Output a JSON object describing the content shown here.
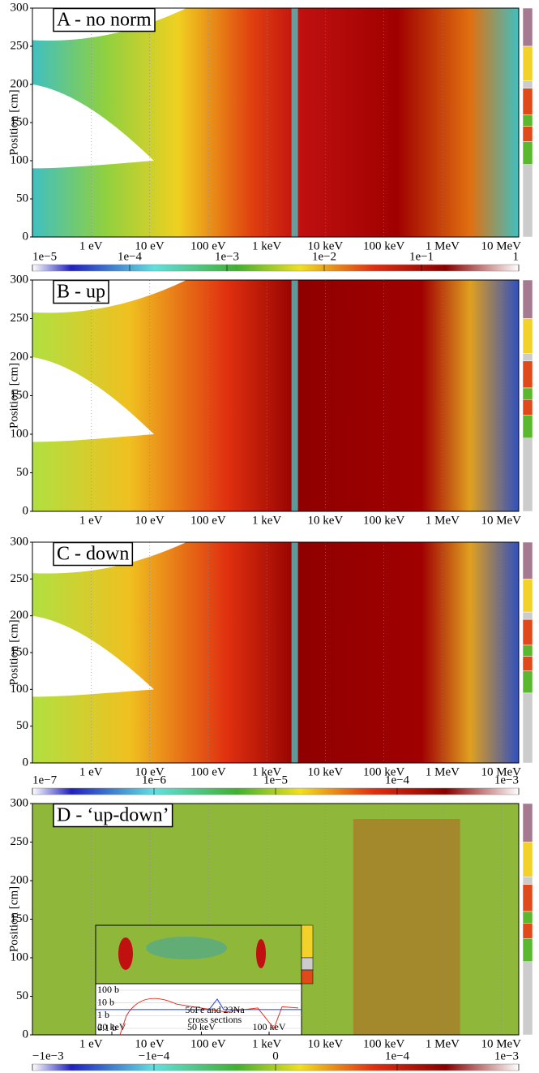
{
  "chart_data": [
    {
      "type": "heatmap",
      "title": "A - no norm",
      "ylabel": "Position [cm]",
      "log_x": true,
      "xlim": [
        0.1,
        20000000
      ],
      "ylim": [
        0,
        300
      ],
      "yticks": [
        0,
        50,
        100,
        150,
        200,
        250,
        300
      ],
      "xticks": [
        {
          "value": 1,
          "label": "1 eV"
        },
        {
          "value": 10,
          "label": "10 eV"
        },
        {
          "value": 100,
          "label": "100 eV"
        },
        {
          "value": 1000,
          "label": "1 keV"
        },
        {
          "value": 10000,
          "label": "10 keV"
        },
        {
          "value": 100000,
          "label": "100 keV"
        },
        {
          "value": 1000000,
          "label": "1 MeV"
        },
        {
          "value": 10000000,
          "label": "10 MeV"
        }
      ],
      "colorbar": {
        "ticks": [
          {
            "value": 1e-05,
            "label": "1e−5"
          },
          {
            "value": 0.0001,
            "label": "1e−4"
          },
          {
            "value": 0.001,
            "label": "1e−3"
          },
          {
            "value": 0.01,
            "label": "1e−2"
          },
          {
            "value": 0.1,
            "label": "1e−1"
          },
          1
        ]
      }
    },
    {
      "type": "heatmap",
      "title": "B - up",
      "ylabel": "Position [cm]",
      "log_x": true,
      "xlim": [
        0.1,
        20000000
      ],
      "ylim": [
        0,
        300
      ],
      "yticks": [
        0,
        50,
        100,
        150,
        200,
        250,
        300
      ],
      "xticks": [
        {
          "value": 1,
          "label": "1 eV"
        },
        {
          "value": 10,
          "label": "10 eV"
        },
        {
          "value": 100,
          "label": "100 eV"
        },
        {
          "value": 1000,
          "label": "1 keV"
        },
        {
          "value": 10000,
          "label": "10 keV"
        },
        {
          "value": 100000,
          "label": "100 keV"
        },
        {
          "value": 1000000,
          "label": "1 MeV"
        },
        {
          "value": 10000000,
          "label": "10 MeV"
        }
      ]
    },
    {
      "type": "heatmap",
      "title": "C - down",
      "ylabel": "Position [cm]",
      "log_x": true,
      "xlim": [
        0.1,
        20000000
      ],
      "ylim": [
        0,
        300
      ],
      "yticks": [
        0,
        50,
        100,
        150,
        200,
        250,
        300
      ],
      "xticks": [
        {
          "value": 1,
          "label": "1 eV"
        },
        {
          "value": 10,
          "label": "10 eV"
        },
        {
          "value": 100,
          "label": "100 eV"
        },
        {
          "value": 1000,
          "label": "1 keV"
        },
        {
          "value": 10000,
          "label": "10 keV"
        },
        {
          "value": 100000,
          "label": "100 keV"
        },
        {
          "value": 1000000,
          "label": "1 MeV"
        },
        {
          "value": 10000000,
          "label": "10 MeV"
        }
      ],
      "colorbar": {
        "ticks": [
          {
            "value": 1e-07,
            "label": "1e−7"
          },
          {
            "value": 1e-06,
            "label": "1e−6"
          },
          {
            "value": 1e-05,
            "label": "1e−5"
          },
          {
            "value": 0.0001,
            "label": "1e−4"
          },
          {
            "value": 0.001,
            "label": "1e−3"
          }
        ]
      }
    },
    {
      "type": "heatmap",
      "title": "D - ‘up-down’",
      "ylabel": "Position [cm]",
      "log_x": true,
      "xlim": [
        0.1,
        20000000
      ],
      "ylim": [
        0,
        300
      ],
      "yticks": [
        0,
        50,
        100,
        150,
        200,
        250,
        300
      ],
      "xticks": [
        {
          "value": 1,
          "label": "1 eV"
        },
        {
          "value": 10,
          "label": "10 eV"
        },
        {
          "value": 100,
          "label": "100 eV"
        },
        {
          "value": 1000,
          "label": "1 keV"
        },
        {
          "value": 10000,
          "label": "10 keV"
        },
        {
          "value": 100000,
          "label": "100 keV"
        },
        {
          "value": 1000000,
          "label": "1 MeV"
        },
        {
          "value": 10000000,
          "label": "10 MeV"
        }
      ],
      "colorbar": {
        "ticks": [
          {
            "value": -0.001,
            "label": "−1e−3"
          },
          {
            "value": -0.0001,
            "label": "−1e−4"
          },
          0,
          {
            "value": 0.0001,
            "label": "1e−4"
          },
          {
            "value": 0.001,
            "label": "1e−3"
          }
        ]
      },
      "inset": {
        "yticks": [
          {
            "value": 100,
            "label": "100 b"
          },
          {
            "value": 10,
            "label": "10 b"
          },
          {
            "value": 1,
            "label": "1 b"
          },
          {
            "value": 0.1,
            "label": "0.1 b"
          }
        ],
        "xticks": [
          {
            "value": 20,
            "label": "20 keV"
          },
          {
            "value": 50,
            "label": "50 keV"
          },
          {
            "value": 100,
            "label": "100 keV"
          }
        ],
        "legend": [
          "56Fe and 23Na",
          "cross sections"
        ]
      }
    }
  ]
}
